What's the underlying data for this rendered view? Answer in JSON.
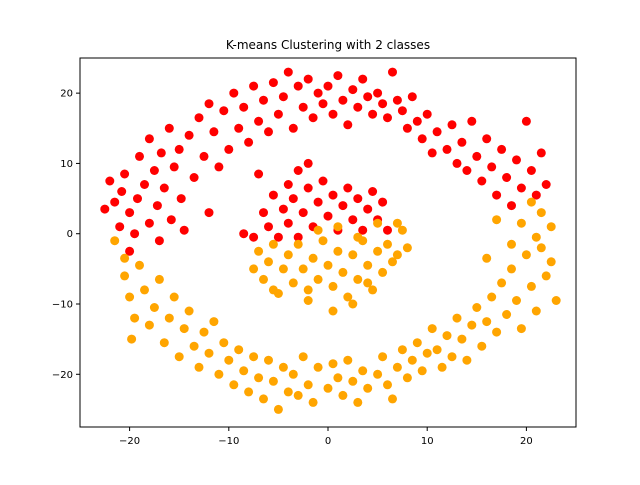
{
  "chart_data": {
    "type": "scatter",
    "title": "K-means Clustering with 2 classes",
    "xlabel": "",
    "ylabel": "",
    "xlim": [
      -25,
      25
    ],
    "ylim": [
      -27.5,
      25
    ],
    "xticks": [
      -20,
      -10,
      0,
      10,
      20
    ],
    "xtick_labels": [
      "−20",
      "−10",
      "0",
      "10",
      "20"
    ],
    "yticks": [
      -20,
      -10,
      0,
      10,
      20
    ],
    "ytick_labels": [
      "−20",
      "−10",
      "0",
      "10",
      "20"
    ],
    "grid": false,
    "legend": "none",
    "series": [
      {
        "color": "#ff0000",
        "description": "upper half (y > ~0): outer ring of radius ~20 and inner blob",
        "points": [
          [
            -22.5,
            3.5
          ],
          [
            -22,
            7.5
          ],
          [
            -21.5,
            4.5
          ],
          [
            -21,
            1
          ],
          [
            -20.8,
            6
          ],
          [
            -20.5,
            8.5
          ],
          [
            -20,
            3
          ],
          [
            -20,
            -2.5
          ],
          [
            -19.5,
            0
          ],
          [
            -19.2,
            5
          ],
          [
            -19,
            11
          ],
          [
            -18.5,
            7
          ],
          [
            -18,
            1.5
          ],
          [
            -18,
            13.5
          ],
          [
            -17.5,
            9
          ],
          [
            -17.2,
            4
          ],
          [
            -17,
            -1
          ],
          [
            -16.8,
            11.5
          ],
          [
            -16.5,
            6.5
          ],
          [
            -16,
            15
          ],
          [
            -15.8,
            2
          ],
          [
            -15.5,
            9.5
          ],
          [
            -15,
            12
          ],
          [
            -14.8,
            5
          ],
          [
            -14.5,
            0.5
          ],
          [
            -14,
            14
          ],
          [
            -13.5,
            8
          ],
          [
            -13,
            16.5
          ],
          [
            -12.5,
            11
          ],
          [
            -12,
            3
          ],
          [
            -12,
            18.5
          ],
          [
            -11.5,
            14.5
          ],
          [
            -11,
            9.5
          ],
          [
            -10.5,
            17.5
          ],
          [
            -10,
            12
          ],
          [
            -9.5,
            20
          ],
          [
            -9,
            15
          ],
          [
            -8.5,
            18
          ],
          [
            -8,
            13
          ],
          [
            -7.5,
            21
          ],
          [
            -7,
            16
          ],
          [
            -6.5,
            19
          ],
          [
            -6,
            14.5
          ],
          [
            -5.5,
            21.5
          ],
          [
            -5,
            17
          ],
          [
            -4.5,
            19.5
          ],
          [
            -4,
            23
          ],
          [
            -3.5,
            15
          ],
          [
            -3,
            21
          ],
          [
            -2.5,
            18
          ],
          [
            -2,
            22
          ],
          [
            -1.5,
            16.5
          ],
          [
            -1,
            20
          ],
          [
            -0.5,
            18.5
          ],
          [
            0,
            21
          ],
          [
            0.5,
            17
          ],
          [
            1,
            22.5
          ],
          [
            1.5,
            19
          ],
          [
            2,
            15.5
          ],
          [
            2.5,
            20.5
          ],
          [
            3,
            18
          ],
          [
            3.5,
            22
          ],
          [
            4,
            19.5
          ],
          [
            4.5,
            17
          ],
          [
            5,
            20
          ],
          [
            5.5,
            18.5
          ],
          [
            6,
            16.5
          ],
          [
            6.5,
            23
          ],
          [
            7,
            19
          ],
          [
            7.5,
            17.5
          ],
          [
            8,
            15
          ],
          [
            8.5,
            19.5
          ],
          [
            9,
            16
          ],
          [
            9.5,
            13.5
          ],
          [
            10,
            17
          ],
          [
            10.5,
            11.5
          ],
          [
            11,
            14.5
          ],
          [
            12,
            12
          ],
          [
            12.5,
            15.5
          ],
          [
            13,
            10
          ],
          [
            13.5,
            13
          ],
          [
            14,
            9
          ],
          [
            14.5,
            16
          ],
          [
            15,
            11
          ],
          [
            15.5,
            7.5
          ],
          [
            16,
            13.5
          ],
          [
            16.5,
            9.5
          ],
          [
            17,
            5.5
          ],
          [
            17.5,
            12
          ],
          [
            18,
            8
          ],
          [
            18.5,
            4
          ],
          [
            19,
            10.5
          ],
          [
            19.5,
            6.5
          ],
          [
            20,
            16
          ],
          [
            20.5,
            9
          ],
          [
            21,
            5.5
          ],
          [
            21.5,
            11.5
          ],
          [
            22,
            7
          ],
          [
            -7,
            8.5
          ],
          [
            -6.5,
            3
          ],
          [
            -6,
            1
          ],
          [
            -5.5,
            5.5
          ],
          [
            -5,
            -0.5
          ],
          [
            -4.5,
            3.5
          ],
          [
            -4,
            7
          ],
          [
            -4,
            1.5
          ],
          [
            -3.5,
            5
          ],
          [
            -3,
            -0.5
          ],
          [
            -3,
            9
          ],
          [
            -2.5,
            3
          ],
          [
            -2,
            6.5
          ],
          [
            -1.5,
            1
          ],
          [
            -1,
            4.5
          ],
          [
            -0.5,
            7.5
          ],
          [
            0,
            2.5
          ],
          [
            0.5,
            5.5
          ],
          [
            1,
            0.5
          ],
          [
            1.5,
            4
          ],
          [
            2,
            6.5
          ],
          [
            2.5,
            2
          ],
          [
            3,
            5
          ],
          [
            3.5,
            0.5
          ],
          [
            4,
            3.5
          ],
          [
            4.5,
            6
          ],
          [
            5,
            2
          ],
          [
            5.5,
            4.5
          ],
          [
            6,
            0.5
          ],
          [
            -8.5,
            0
          ],
          [
            -7.5,
            -0.5
          ],
          [
            -2,
            10
          ]
        ]
      },
      {
        "color": "#ffa500",
        "description": "lower half (y < ~0): outer ring of radius ~20 and inner blob",
        "points": [
          [
            -20.5,
            -6
          ],
          [
            -20,
            -9
          ],
          [
            -19.8,
            -15
          ],
          [
            -19.5,
            -12
          ],
          [
            -19,
            -4.5
          ],
          [
            -18.5,
            -8
          ],
          [
            -18,
            -13
          ],
          [
            -17.5,
            -10.5
          ],
          [
            -17,
            -6.5
          ],
          [
            -16.5,
            -15.5
          ],
          [
            -16,
            -12
          ],
          [
            -15.5,
            -9
          ],
          [
            -15,
            -17.5
          ],
          [
            -14.5,
            -13.5
          ],
          [
            -14,
            -11
          ],
          [
            -13.5,
            -16
          ],
          [
            -13,
            -19
          ],
          [
            -12.5,
            -14
          ],
          [
            -12,
            -17
          ],
          [
            -11.5,
            -12.5
          ],
          [
            -11,
            -20
          ],
          [
            -10.5,
            -15.5
          ],
          [
            -10,
            -18
          ],
          [
            -9.5,
            -21.5
          ],
          [
            -9,
            -16.5
          ],
          [
            -8.5,
            -19.5
          ],
          [
            -8,
            -22.5
          ],
          [
            -7.5,
            -17.5
          ],
          [
            -7,
            -20.5
          ],
          [
            -6.5,
            -23.5
          ],
          [
            -6,
            -18
          ],
          [
            -5.5,
            -21
          ],
          [
            -5,
            -25
          ],
          [
            -4.5,
            -19
          ],
          [
            -4,
            -22.5
          ],
          [
            -3.5,
            -20
          ],
          [
            -3,
            -23
          ],
          [
            -2.5,
            -17.5
          ],
          [
            -2,
            -21.5
          ],
          [
            -1.5,
            -24
          ],
          [
            -1,
            -19
          ],
          [
            0,
            -22
          ],
          [
            0.5,
            -18.5
          ],
          [
            1,
            -20.5
          ],
          [
            1.5,
            -23
          ],
          [
            2,
            -18
          ],
          [
            2.5,
            -21
          ],
          [
            3,
            -24
          ],
          [
            3.5,
            -19.5
          ],
          [
            4,
            -22
          ],
          [
            5,
            -20
          ],
          [
            5.5,
            -17.5
          ],
          [
            6,
            -21.5
          ],
          [
            6.5,
            -23.5
          ],
          [
            7,
            -19
          ],
          [
            7.5,
            -16.5
          ],
          [
            8,
            -20.5
          ],
          [
            8.5,
            -18
          ],
          [
            9,
            -15.5
          ],
          [
            9.5,
            -19.5
          ],
          [
            10,
            -17
          ],
          [
            10.5,
            -13.5
          ],
          [
            11,
            -16.5
          ],
          [
            11.5,
            -19
          ],
          [
            12,
            -14.5
          ],
          [
            12.5,
            -17.5
          ],
          [
            13,
            -12
          ],
          [
            13.5,
            -15
          ],
          [
            14,
            -18
          ],
          [
            14.5,
            -13
          ],
          [
            15,
            -10.5
          ],
          [
            15.5,
            -16
          ],
          [
            16,
            -12.5
          ],
          [
            16.5,
            -9
          ],
          [
            17,
            -14
          ],
          [
            17.5,
            -7
          ],
          [
            18,
            -11.5
          ],
          [
            18.5,
            -5
          ],
          [
            19,
            -9.5
          ],
          [
            19.5,
            -13.5
          ],
          [
            20,
            -3
          ],
          [
            20.5,
            -7.5
          ],
          [
            21,
            -11
          ],
          [
            21.5,
            -2
          ],
          [
            22,
            -6
          ],
          [
            22.5,
            -4
          ],
          [
            23,
            -9.5
          ],
          [
            22.5,
            1
          ],
          [
            21.5,
            3
          ],
          [
            19.5,
            1.5
          ],
          [
            18.5,
            -1.5
          ],
          [
            17,
            2
          ],
          [
            16,
            -3.5
          ],
          [
            20.5,
            4.5
          ],
          [
            21,
            -0.5
          ],
          [
            -21.5,
            -1
          ],
          [
            -20.5,
            -3.5
          ],
          [
            -7.5,
            -5
          ],
          [
            -7,
            -2.5
          ],
          [
            -6.5,
            -6.5
          ],
          [
            -6,
            -4
          ],
          [
            -5.5,
            -1.5
          ],
          [
            -5,
            -8.5
          ],
          [
            -4.5,
            -5
          ],
          [
            -4,
            -3
          ],
          [
            -3.5,
            -7
          ],
          [
            -3,
            -1.5
          ],
          [
            -2.5,
            -5
          ],
          [
            -2,
            -8
          ],
          [
            -1.5,
            -3.5
          ],
          [
            -1,
            -6.5
          ],
          [
            -0.5,
            -1
          ],
          [
            0,
            -4.5
          ],
          [
            0.5,
            -7.5
          ],
          [
            1,
            -2.5
          ],
          [
            1.5,
            -5.5
          ],
          [
            2,
            -9
          ],
          [
            2.5,
            -3
          ],
          [
            3,
            -6.5
          ],
          [
            3.5,
            -1
          ],
          [
            4,
            -4.5
          ],
          [
            4.5,
            -8
          ],
          [
            5,
            -2.5
          ],
          [
            5.5,
            -5.5
          ],
          [
            6,
            -1.5
          ],
          [
            6.5,
            -4
          ],
          [
            7,
            -3
          ],
          [
            7.5,
            0.5
          ],
          [
            8,
            -2
          ],
          [
            -1,
            0.5
          ],
          [
            1,
            1
          ],
          [
            3,
            -0.5
          ],
          [
            5,
            1.5
          ],
          [
            7,
            1.5
          ],
          [
            2.5,
            -10
          ],
          [
            -5.5,
            -8
          ],
          [
            0.5,
            -11
          ],
          [
            -2,
            -9.5
          ],
          [
            4,
            -7
          ]
        ]
      }
    ]
  }
}
